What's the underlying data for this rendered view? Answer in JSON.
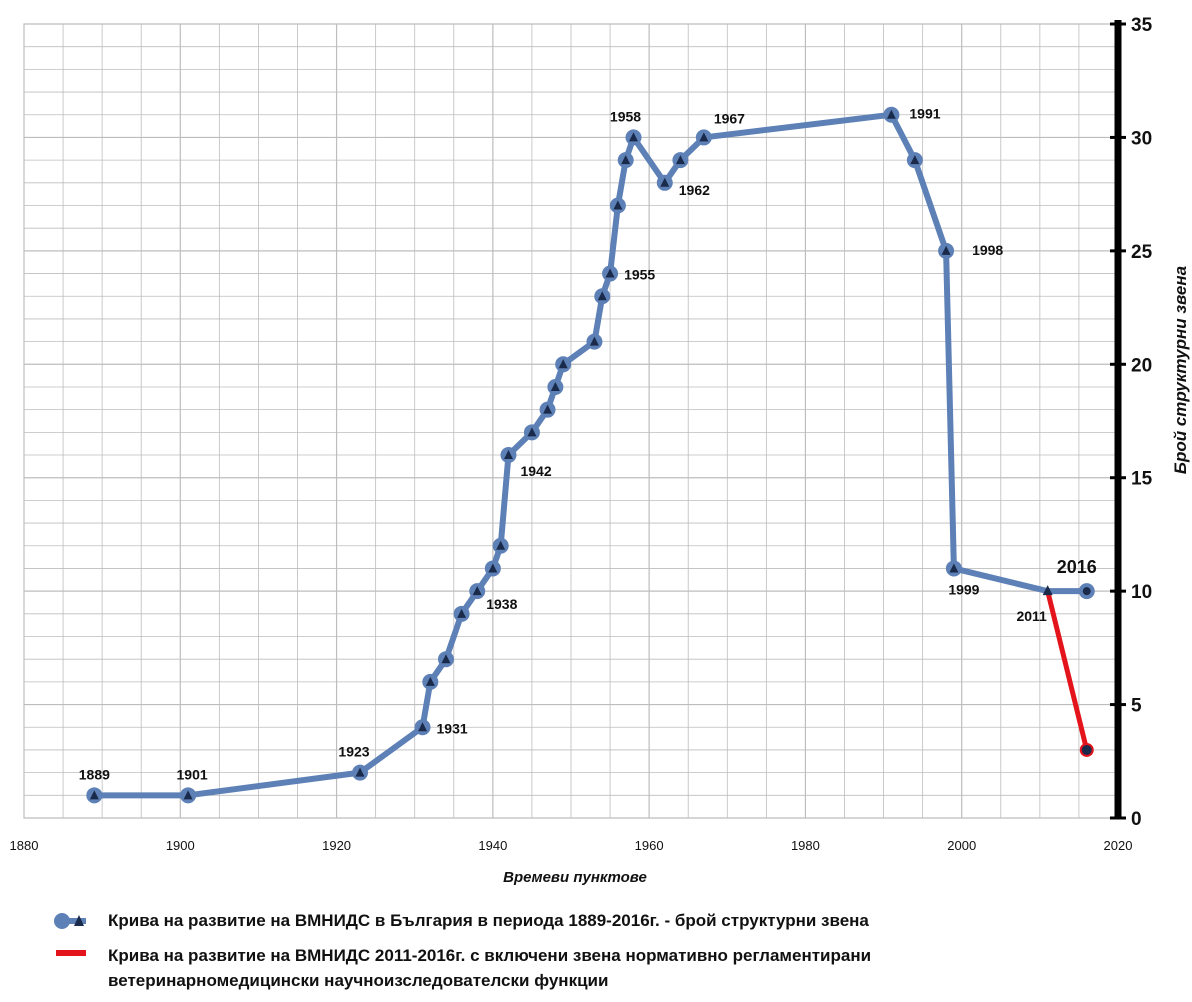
{
  "chart_data": {
    "type": "line",
    "xlabel": "Времеви пунктове",
    "ylabel": "Брой структурни звена",
    "xlim": [
      1880,
      2020
    ],
    "ylim": [
      0,
      35
    ],
    "x_ticks": [
      "1880",
      "1900",
      "1920",
      "1940",
      "1960",
      "1980",
      "2000",
      "2020"
    ],
    "y_ticks": [
      "0",
      "5",
      "10",
      "15",
      "20",
      "25",
      "30",
      "35"
    ],
    "grid": true,
    "legend_position": "bottom",
    "series": [
      {
        "name": "Крива на развитие на ВМНИДС в България в периода 1889-2016г. - брой структурни звена",
        "color": "#5d80b6",
        "points": [
          {
            "x": 1889,
            "y": 1
          },
          {
            "x": 1901,
            "y": 1
          },
          {
            "x": 1923,
            "y": 2
          },
          {
            "x": 1931,
            "y": 4
          },
          {
            "x": 1932,
            "y": 6
          },
          {
            "x": 1934,
            "y": 7
          },
          {
            "x": 1936,
            "y": 9
          },
          {
            "x": 1938,
            "y": 10
          },
          {
            "x": 1940,
            "y": 11
          },
          {
            "x": 1941,
            "y": 12
          },
          {
            "x": 1942,
            "y": 16
          },
          {
            "x": 1945,
            "y": 17
          },
          {
            "x": 1947,
            "y": 18
          },
          {
            "x": 1948,
            "y": 19
          },
          {
            "x": 1949,
            "y": 20
          },
          {
            "x": 1953,
            "y": 21
          },
          {
            "x": 1954,
            "y": 23
          },
          {
            "x": 1955,
            "y": 24
          },
          {
            "x": 1956,
            "y": 27
          },
          {
            "x": 1957,
            "y": 29
          },
          {
            "x": 1958,
            "y": 30
          },
          {
            "x": 1962,
            "y": 28
          },
          {
            "x": 1964,
            "y": 29
          },
          {
            "x": 1967,
            "y": 30
          },
          {
            "x": 1991,
            "y": 31
          },
          {
            "x": 1994,
            "y": 29
          },
          {
            "x": 1998,
            "y": 25
          },
          {
            "x": 1999,
            "y": 11
          },
          {
            "x": 2011,
            "y": 10
          },
          {
            "x": 2016,
            "y": 10
          }
        ]
      },
      {
        "name": "Крива на развитие на ВМНИДС 2011-2016г. с включени звена нормативно регламентирани ветеринарномедицински научноизследователски функции",
        "color": "#e3141b",
        "points": [
          {
            "x": 2011,
            "y": 10
          },
          {
            "x": 2016,
            "y": 3
          }
        ]
      }
    ],
    "annotations": [
      {
        "text": "1889",
        "x": 1889,
        "y": 1
      },
      {
        "text": "1901",
        "x": 1901,
        "y": 1
      },
      {
        "text": "1923",
        "x": 1923,
        "y": 2
      },
      {
        "text": "1931",
        "x": 1931,
        "y": 4
      },
      {
        "text": "1938",
        "x": 1938,
        "y": 10
      },
      {
        "text": "1942",
        "x": 1942,
        "y": 16
      },
      {
        "text": "1955",
        "x": 1955,
        "y": 24
      },
      {
        "text": "1958",
        "x": 1958,
        "y": 30
      },
      {
        "text": "1962",
        "x": 1962,
        "y": 28
      },
      {
        "text": "1967",
        "x": 1967,
        "y": 30
      },
      {
        "text": "1991",
        "x": 1991,
        "y": 31
      },
      {
        "text": "1998",
        "x": 1998,
        "y": 25
      },
      {
        "text": "1999",
        "x": 1999,
        "y": 11
      },
      {
        "text": "2011",
        "x": 2011,
        "y": 10
      },
      {
        "text": "2016",
        "x": 2016,
        "y": 10
      }
    ]
  },
  "legend": {
    "item1": "Крива на развитие на ВМНИДС в България в периода 1889-2016г. - брой структурни звена",
    "item2_line1": "Крива на развитие на ВМНИДС 2011-2016г. с включени звена нормативно регламентирани",
    "item2_line2": "ветеринарномедицински научноизследователски функции"
  }
}
